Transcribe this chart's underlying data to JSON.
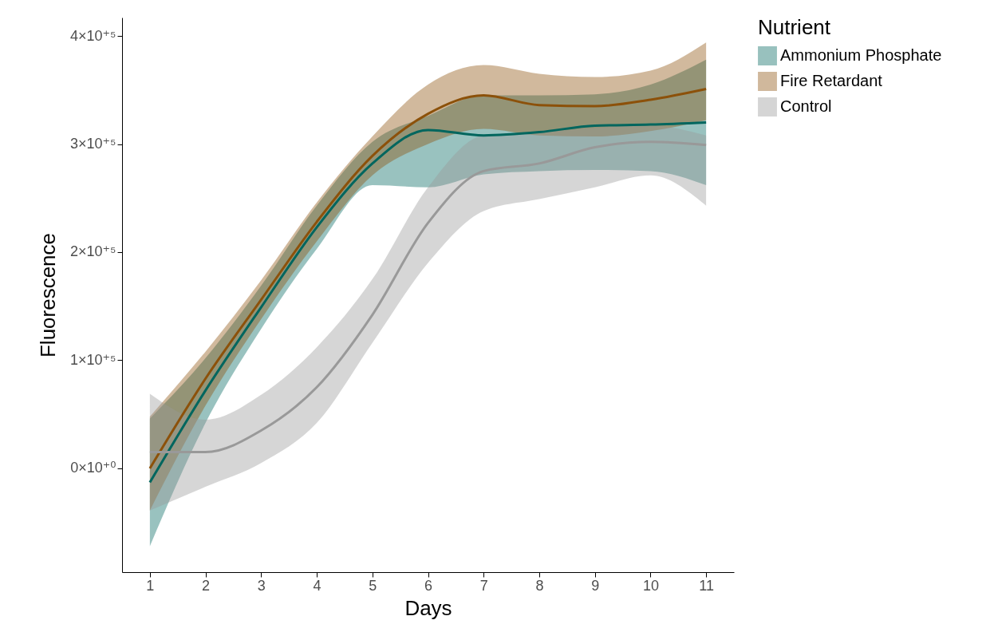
{
  "chart_data": {
    "type": "line",
    "xlabel": "Days",
    "ylabel": "Fluorescence",
    "legend_title": "Nutrient",
    "legend": "right",
    "grid": false,
    "line_style": "solid",
    "marker": "none",
    "x": [
      1,
      2,
      3,
      4,
      5,
      6,
      7,
      8,
      9,
      10,
      11
    ],
    "xlim": [
      0.5,
      11.5
    ],
    "xticks": [
      1,
      2,
      3,
      4,
      5,
      6,
      7,
      8,
      9,
      10,
      11
    ],
    "ylim": [
      -96000,
      417000
    ],
    "yticks": [
      {
        "value": 0,
        "label": "0×10⁺⁰"
      },
      {
        "value": 100000,
        "label": "1×10⁺⁵"
      },
      {
        "value": 200000,
        "label": "2×10⁺⁵"
      },
      {
        "value": 300000,
        "label": "3×10⁺⁵"
      },
      {
        "value": 400000,
        "label": "4×10⁺⁵"
      }
    ],
    "series": [
      {
        "name": "Ammonium Phosphate",
        "color": "#01665e",
        "values": [
          -13000,
          72000,
          149000,
          223000,
          282000,
          313000,
          308000,
          311000,
          317000,
          318000,
          320000
        ],
        "lower": [
          -72000,
          42000,
          129000,
          203000,
          262000,
          260000,
          272000,
          275000,
          276000,
          275000,
          262000
        ],
        "upper": [
          46000,
          102000,
          169000,
          243000,
          302000,
          326000,
          345000,
          345000,
          346000,
          355000,
          378000
        ]
      },
      {
        "name": "Fire Retardant",
        "color": "#8c510a",
        "values": [
          0,
          83000,
          156000,
          228000,
          289000,
          328000,
          345000,
          336000,
          335000,
          341000,
          351000
        ],
        "lower": [
          -39000,
          58000,
          138000,
          210000,
          271000,
          300000,
          314000,
          308000,
          307000,
          312000,
          322000
        ],
        "upper": [
          48000,
          108000,
          174000,
          246000,
          307000,
          355000,
          373000,
          365000,
          362000,
          368000,
          394000
        ]
      },
      {
        "name": "Control",
        "color": "#999999",
        "values": [
          15000,
          15000,
          35000,
          75000,
          142000,
          227000,
          275000,
          282000,
          297000,
          302000,
          299000
        ],
        "lower": [
          -39000,
          -17000,
          5000,
          42000,
          116000,
          190000,
          238000,
          249000,
          260000,
          271000,
          243000
        ],
        "upper": [
          69000,
          45000,
          68000,
          112000,
          175000,
          260000,
          308000,
          311000,
          315000,
          317000,
          308000
        ]
      }
    ]
  }
}
